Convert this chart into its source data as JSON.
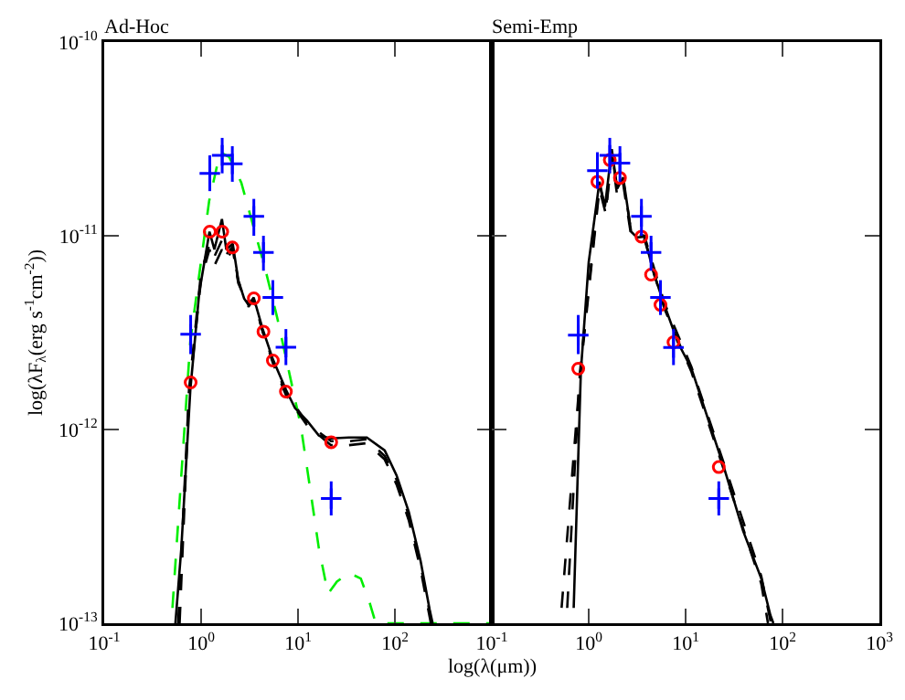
{
  "chart_data": [
    {
      "type": "line",
      "title": "Ad-Hoc",
      "ylabel": "log(λF$_{λ}$(erg s$^{-1}$cm$^{-2}$))",
      "log": "xy",
      "xlim": [
        0.1,
        1000
      ],
      "ylim": [
        1e-13,
        1e-10
      ],
      "xticks": [
        {
          "value": 0.1,
          "label": "10$^{-1}$"
        },
        {
          "value": 1,
          "label": "10$^{0}$"
        },
        {
          "value": 10,
          "label": "10$^{1}$"
        },
        {
          "value": 100,
          "label": "10$^{2}$"
        },
        {
          "value": 1000,
          "label": null
        }
      ],
      "yticks": [
        {
          "value": 1e-13,
          "label": "10$^{-13}$"
        },
        {
          "value": 1e-12,
          "label": "10$^{-12}$"
        },
        {
          "value": 1e-11,
          "label": "10$^{-11}$"
        },
        {
          "value": 1e-10,
          "label": "10$^{-10}$"
        }
      ],
      "series": [
        {
          "type": "line",
          "color": "#00ee00",
          "line_style": "dashed",
          "x": [
            0.506,
            0.774,
            1.21,
            1.57,
            1.95,
            2.6,
            3.44,
            4.57,
            6.08,
            8.07,
            10.7,
            13.3,
            16.4,
            20.4,
            25.2,
            33.5,
            44.5,
            55,
            63.4,
            1000
          ],
          "values": [
            1.2e-13,
            2.86e-12,
            1.51e-11,
            2.7e-11,
            2.55e-11,
            1.88e-11,
            1.13e-11,
            6.8e-12,
            3.8e-12,
            1.99e-12,
            1.04e-12,
            5e-13,
            2.44e-13,
            1.42e-13,
            1.64e-13,
            1.82e-13,
            1.7e-13,
            1.27e-13,
            1e-13,
            1e-13
          ]
        },
        {
          "type": "line",
          "color": "#000000",
          "line_style": "dashed",
          "x": [
            0.6,
            0.75,
            1.0,
            1.22,
            1.37,
            1.64,
            1.82,
            2.12,
            2.42,
            3.08,
            3.49,
            4.32,
            5.51,
            7.53,
            12.4,
            21.9,
            33.5,
            51.3,
            78.5,
            104,
            139,
            184,
            235
          ],
          "values": [
            1e-13,
            1.5e-12,
            6e-12,
            8.5e-12,
            7e-12,
            8.5e-12,
            7.5e-12,
            8.5e-12,
            5.7e-12,
            4.3e-12,
            4.7e-12,
            3.2e-12,
            2.2e-12,
            1.5e-12,
            1.05e-12,
            8.3e-13,
            8.3e-13,
            8.5e-13,
            7e-13,
            5.2e-13,
            3.4e-13,
            1.9e-13,
            1e-13
          ]
        },
        {
          "type": "line",
          "color": "#000000",
          "line_style": "dashed",
          "x": [
            0.58,
            0.75,
            1.0,
            1.22,
            1.37,
            1.64,
            1.82,
            2.12,
            2.42,
            3.08,
            3.49,
            4.32,
            5.51,
            7.53,
            12.4,
            21.9,
            33.5,
            51.3,
            78.5,
            104,
            139,
            184,
            240
          ],
          "values": [
            1e-13,
            1.6e-12,
            6.5e-12,
            9e-12,
            7.8e-12,
            9.5e-12,
            8e-12,
            8.8e-12,
            5.8e-12,
            4.4e-12,
            4.7e-12,
            3.2e-12,
            2.25e-12,
            1.55e-12,
            1.08e-12,
            8.7e-13,
            8.7e-13,
            8.9e-13,
            7.3e-13,
            5.5e-13,
            3.6e-13,
            2e-13,
            1e-13
          ]
        },
        {
          "type": "line",
          "color": "#000000",
          "line_style": "solid",
          "x": [
            0.543,
            0.625,
            0.774,
            0.957,
            1.22,
            1.37,
            1.64,
            1.82,
            2.12,
            2.42,
            2.78,
            3.08,
            3.49,
            4.32,
            5.51,
            7.53,
            9.31,
            12.4,
            16.4,
            21.9,
            33.5,
            51.3,
            78.5,
            104,
            139,
            184,
            228,
            245
          ],
          "values": [
            1e-13,
            2.44e-13,
            1.6e-12,
            5.1e-12,
            1.05e-11,
            8.5e-12,
            1.22e-11,
            8.5e-12,
            9.1e-12,
            5.9e-12,
            4.74e-12,
            4.4e-12,
            4.8e-12,
            3.3e-12,
            2.3e-12,
            1.6e-12,
            1.29e-12,
            1.11e-12,
            9.3e-13,
            9e-13,
            9.1e-13,
            9.1e-13,
            7.8e-13,
            5.8e-13,
            3.76e-13,
            2.1e-13,
            1.18e-13,
            1e-13
          ]
        },
        {
          "type": "scatter",
          "color": "#ff0000",
          "marker": "circle",
          "x": [
            0.78,
            1.23,
            1.65,
            2.1,
            3.5,
            4.4,
            5.5,
            7.5,
            22
          ],
          "values": [
            1.75e-12,
            1.05e-11,
            1.05e-11,
            8.7e-12,
            4.75e-12,
            3.2e-12,
            2.27e-12,
            1.57e-12,
            8.6e-13
          ]
        },
        {
          "type": "scatter",
          "color": "#0000ff",
          "marker": "cross",
          "x": [
            0.78,
            1.23,
            1.65,
            2.1,
            3.5,
            4.4,
            5.5,
            7.5,
            22
          ],
          "values": [
            3.1e-12,
            2.1e-11,
            2.6e-11,
            2.35e-11,
            1.26e-11,
            8.2e-12,
            4.8e-12,
            2.66e-12,
            4.4e-13
          ],
          "errors": [
            [
              2.45e-12,
              3.9e-12
            ],
            [
              1.7e-11,
              2.6e-11
            ],
            [
              2.1e-11,
              3.2e-11
            ],
            [
              1.9e-11,
              2.9e-11
            ],
            [
              1e-11,
              1.55e-11
            ],
            [
              6.6e-12,
              1e-11
            ],
            [
              3.9e-12,
              5.9e-12
            ],
            [
              2.15e-12,
              3.3e-12
            ],
            [
              3.6e-13,
              5.4e-13
            ]
          ]
        }
      ]
    },
    {
      "type": "line",
      "title": "Semi-Emp",
      "xlabel": "log(λ(μm))",
      "log": "xy",
      "tick_labels": "x",
      "xlim": [
        0.1,
        1000
      ],
      "ylim": [
        1e-13,
        1e-10
      ],
      "xticks": [
        {
          "value": 0.1,
          "label": "10$^{-1}$"
        },
        {
          "value": 1,
          "label": "10$^{0}$"
        },
        {
          "value": 10,
          "label": "10$^{1}$"
        },
        {
          "value": 100,
          "label": "10$^{2}$"
        },
        {
          "value": 1000,
          "label": "10$^{3}$"
        }
      ],
      "yticks": [
        {
          "value": 1e-13,
          "label": null
        },
        {
          "value": 1e-12,
          "label": null
        },
        {
          "value": 1e-11,
          "label": null
        },
        {
          "value": 1e-10,
          "label": null
        }
      ],
      "series": [
        {
          "type": "line",
          "color": "#000000",
          "line_style": "dashed",
          "x": [
            0.525,
            0.81,
            1.29,
            1.5,
            1.73,
            1.97,
            2.27,
            2.74,
            3.76,
            6.04,
            11.5,
            24.8,
            60.4,
            70.8
          ],
          "values": [
            1.2e-13,
            1.85e-12,
            1.75e-11,
            1.3e-11,
            2.6e-11,
            1.6e-11,
            1.85e-11,
            1e-11,
            9.6e-12,
            4.2e-12,
            1.98e-12,
            6.2e-13,
            1.6e-13,
            1e-13
          ]
        },
        {
          "type": "line",
          "color": "#000000",
          "line_style": "dashed",
          "x": [
            0.6,
            0.81,
            1.29,
            1.5,
            1.73,
            1.97,
            2.27,
            2.74,
            3.76,
            6.04,
            11.5,
            24.8,
            60.4,
            76
          ],
          "values": [
            1.2e-13,
            1.95e-12,
            1.85e-11,
            1.35e-11,
            2.7e-11,
            1.7e-11,
            1.95e-11,
            1.05e-11,
            1e-11,
            4.5e-12,
            2.1e-12,
            6.7e-13,
            1.75e-13,
            1e-13
          ]
        },
        {
          "type": "line",
          "color": "#000000",
          "line_style": "solid",
          "x": [
            0.7,
            0.83,
            1.0,
            1.29,
            1.47,
            1.73,
            1.97,
            2.27,
            2.74,
            3.16,
            3.76,
            4.73,
            6.04,
            8.3,
            11.5,
            24.8,
            39.2,
            60.4,
            75,
            80.5
          ],
          "values": [
            1.2e-13,
            2e-12,
            7.3e-12,
            1.9e-11,
            1.41e-11,
            2.8e-11,
            1.75e-11,
            2e-11,
            1.05e-11,
            9.8e-12,
            9.9e-12,
            6.3e-12,
            4.4e-12,
            2.82e-12,
            2.06e-12,
            6.4e-13,
            3e-13,
            1.7e-13,
            1.1e-13,
            1e-13
          ]
        },
        {
          "type": "scatter",
          "color": "#ff0000",
          "marker": "circle",
          "x": [
            0.78,
            1.23,
            1.65,
            2.1,
            3.5,
            4.4,
            5.5,
            7.5,
            22
          ],
          "values": [
            2.06e-12,
            1.9e-11,
            2.46e-11,
            1.99e-11,
            9.9e-12,
            6.3e-12,
            4.4e-12,
            2.82e-12,
            6.4e-13
          ]
        },
        {
          "type": "scatter",
          "color": "#0000ff",
          "marker": "cross",
          "x": [
            0.78,
            1.23,
            1.65,
            2.1,
            3.5,
            4.4,
            5.5,
            7.5,
            22
          ],
          "values": [
            3.07e-12,
            2.17e-11,
            2.6e-11,
            2.37e-11,
            1.26e-11,
            8.2e-12,
            4.8e-12,
            2.65e-12,
            4.4e-13
          ],
          "errors": [
            [
              2.45e-12,
              3.9e-12
            ],
            [
              1.75e-11,
              2.7e-11
            ],
            [
              2.1e-11,
              3.2e-11
            ],
            [
              1.9e-11,
              2.9e-11
            ],
            [
              1e-11,
              1.55e-11
            ],
            [
              6.6e-12,
              1e-11
            ],
            [
              3.9e-12,
              5.9e-12
            ],
            [
              2.15e-12,
              3.3e-12
            ],
            [
              3.6e-13,
              5.4e-13
            ]
          ]
        }
      ]
    }
  ]
}
